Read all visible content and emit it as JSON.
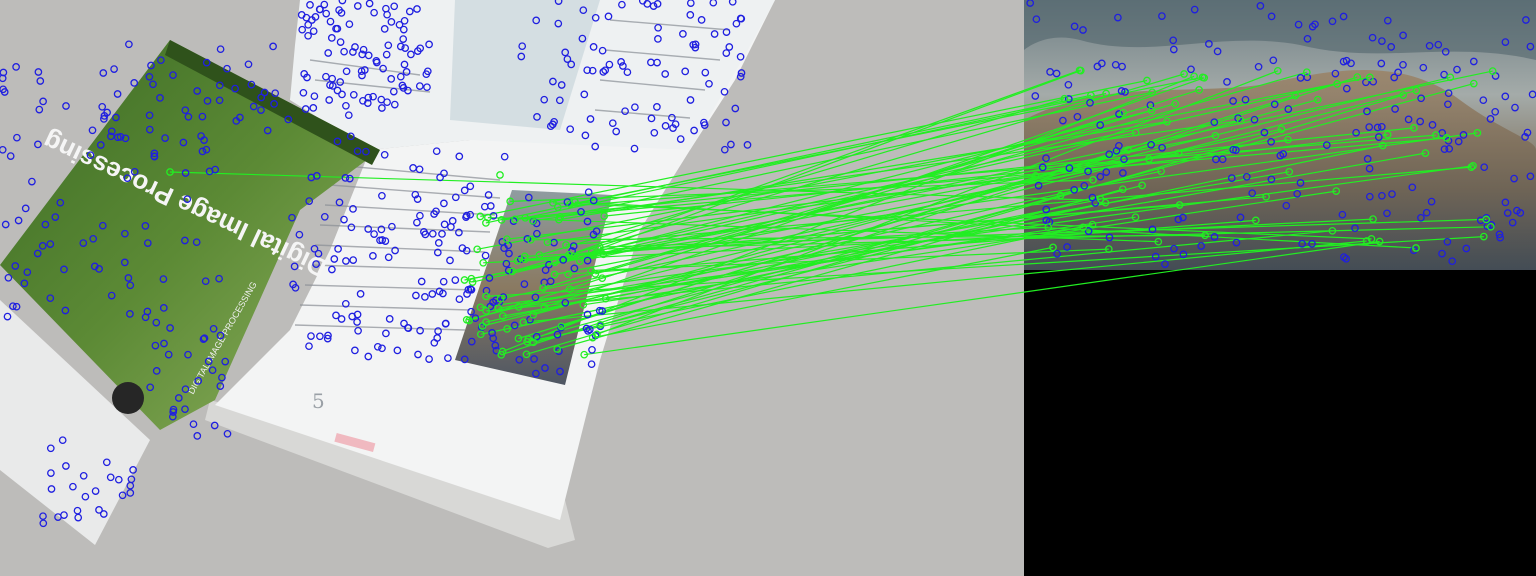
{
  "layout": "side-by-side feature match visualization",
  "colors": {
    "table_surface": "#bdbcba",
    "book_cover_green": "#4f7d2f",
    "book_spine_dark": "#3c5f22",
    "page_white": "#f3f4f4",
    "keypoint": "#1f1fe0",
    "match_line": "#22ee22",
    "right_panel_background": "#000000",
    "sky_tone": "#7f8e92",
    "ground_tone": "#866f58"
  },
  "left_image": {
    "content": "photo of an open book on a grey surface",
    "book_spine_text": "Digital Image Processing",
    "cover_band_text": "DIGITAL IMAGE PROCESSING",
    "page_heading_glyph": "5"
  },
  "right_image": {
    "content": "landscape photo crop with sky and rocky terrain"
  },
  "keypoints_color": "blue-circle",
  "matches_color": "green-line"
}
